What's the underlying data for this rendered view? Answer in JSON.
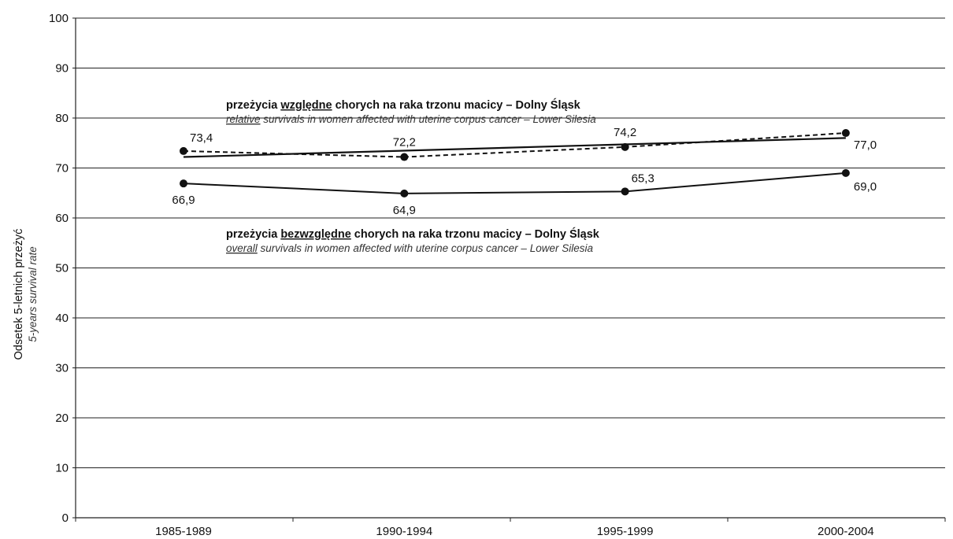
{
  "chart_data": {
    "type": "line",
    "categories": [
      "1985-1989",
      "1990-1994",
      "1995-1999",
      "2000-2004"
    ],
    "ylim": [
      0,
      100
    ],
    "yticks": [
      0,
      10,
      20,
      30,
      40,
      50,
      60,
      70,
      80,
      90,
      100
    ],
    "ylabel": "Odsetek 5-letnich przeżyć",
    "ylabel_en": "5-years survival rate",
    "grid": true,
    "series": [
      {
        "values": [
          73.4,
          72.2,
          74.2,
          77.0
        ],
        "labels": [
          "73,4",
          "72,2",
          "74,2",
          "77,0"
        ],
        "style": "dashed",
        "color": "#111111"
      },
      {
        "values": [
          66.9,
          64.9,
          65.3,
          69.0
        ],
        "labels": [
          "66,9",
          "64,9",
          "65,3",
          "69,0"
        ],
        "style": "solid",
        "color": "#111111"
      }
    ],
    "trend_line": {
      "style": "solid",
      "color": "#111111",
      "start": 72.2,
      "end": 76.0
    },
    "annotations": [
      {
        "pl_prefix": "przeżycia ",
        "pl_underlined": "względne",
        "pl_suffix": " chorych na raka trzonu macicy – Dolny Śląsk",
        "en_underlined": "relative",
        "en_suffix": " survivals in women affected with uterine corpus cancer – Lower Silesia"
      },
      {
        "pl_prefix": "przeżycia ",
        "pl_underlined": "bezwzględne",
        "pl_suffix": " chorych na raka trzonu macicy – Dolny Śląsk",
        "en_underlined": "overall",
        "en_suffix": " survivals in women affected with uterine corpus cancer – Lower Silesia"
      }
    ]
  }
}
